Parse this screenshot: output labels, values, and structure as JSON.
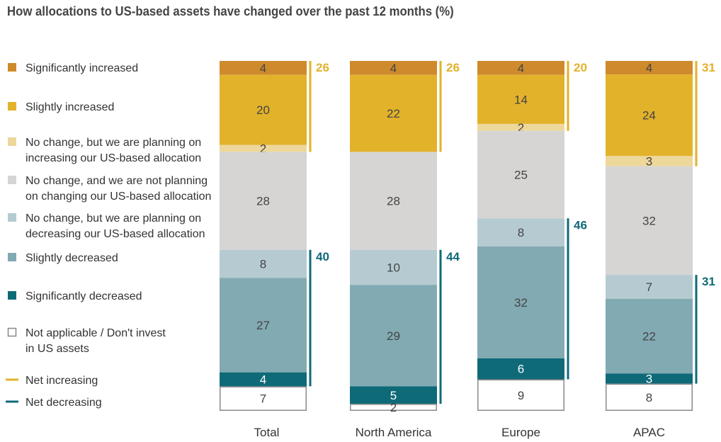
{
  "chart_data": {
    "type": "stacked-bar",
    "title": "How allocations to US-based assets have changed over the past 12 months (%)",
    "categories": [
      "Total",
      "North America",
      "Europe",
      "APAC"
    ],
    "series": [
      {
        "name": "Significantly increased",
        "color": "#CF8A2C",
        "values": [
          4,
          4,
          4,
          4
        ]
      },
      {
        "name": "Slightly increased",
        "color": "#E2B22A",
        "values": [
          20,
          22,
          14,
          24
        ]
      },
      {
        "name": "No change, but we are planning on increasing our US-based allocation",
        "color": "#EDD79A",
        "values": [
          2,
          null,
          2,
          3
        ]
      },
      {
        "name": "No change, and we are not planning on changing our US-based allocation",
        "color": "#D6D5D3",
        "values": [
          28,
          28,
          25,
          32
        ]
      },
      {
        "name": "No change, but we are planning on decreasing our US-based allocation",
        "color": "#B5CBD1",
        "values": [
          8,
          10,
          8,
          7
        ]
      },
      {
        "name": "Slightly decreased",
        "color": "#82AAB3",
        "values": [
          27,
          29,
          32,
          22
        ]
      },
      {
        "name": "Significantly decreased",
        "color": "#0F6A78",
        "values": [
          4,
          5,
          6,
          3
        ]
      },
      {
        "name": "Not applicable / Don't invest in US assets",
        "color": "#FFFFFF",
        "values": [
          7,
          2,
          9,
          8
        ]
      }
    ],
    "net_increasing": {
      "name": "Net increasing",
      "color": "#E2B22A",
      "values": [
        26,
        26,
        20,
        31
      ]
    },
    "net_decreasing": {
      "name": "Net decreasing",
      "color": "#0F6A78",
      "values": [
        40,
        44,
        46,
        31
      ]
    },
    "legend_lines": {
      "significantly_increased": [
        "Significantly increased"
      ],
      "slightly_increased": [
        "Slightly increased"
      ],
      "no_change_increase": [
        "No change, but we are planning on",
        "increasing our US-based allocation"
      ],
      "no_change_none": [
        "No change, and we are not planning",
        "on changing our US-based allocation"
      ],
      "no_change_decrease": [
        "No change, but we are planning on",
        "decreasing our US-based allocation"
      ],
      "slightly_decreased": [
        "Slightly decreased"
      ],
      "significantly_decreased": [
        "Significantly decreased"
      ],
      "not_applicable": [
        "Not applicable / Don't invest",
        "in US assets"
      ],
      "net_increasing": [
        "Net increasing"
      ],
      "net_decreasing": [
        "Net decreasing"
      ]
    },
    "legend_position": "left"
  }
}
